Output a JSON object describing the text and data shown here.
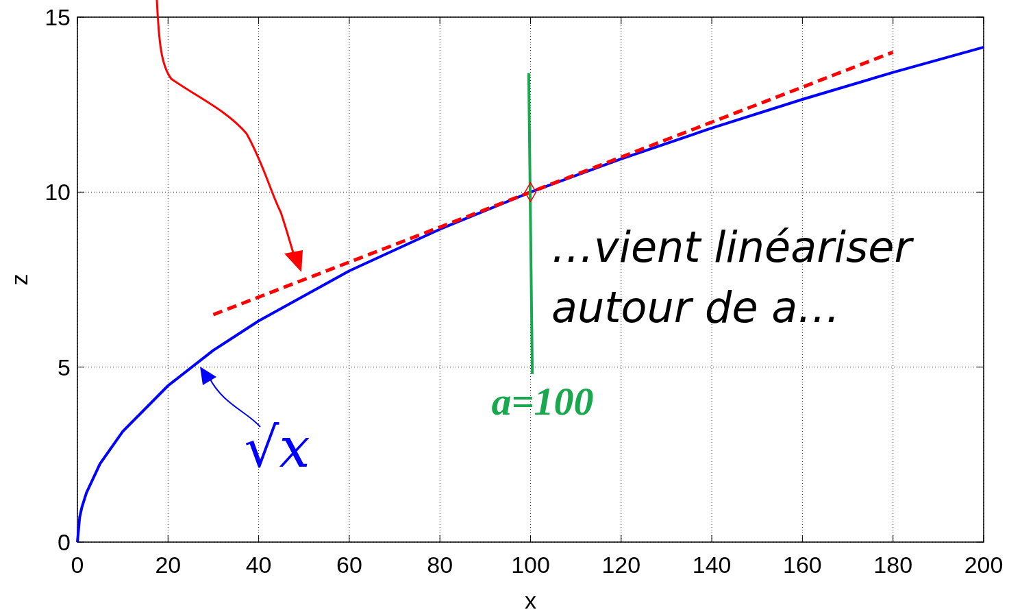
{
  "chart_data": {
    "type": "line",
    "xlabel": "x",
    "ylabel": "z",
    "xlim": [
      0,
      200
    ],
    "ylim": [
      0,
      15
    ],
    "xticks": [
      0,
      20,
      40,
      60,
      80,
      100,
      120,
      140,
      160,
      180,
      200
    ],
    "yticks": [
      0,
      5,
      10,
      15
    ],
    "grid": true,
    "series": [
      {
        "color": "#0000ff",
        "x": [
          0,
          0.5,
          1,
          2,
          5,
          10,
          20,
          30,
          40,
          60,
          80,
          100,
          120,
          140,
          160,
          180,
          200
        ],
        "values": [
          0,
          0.71,
          1,
          1.41,
          2.24,
          3.16,
          4.47,
          5.48,
          6.32,
          7.75,
          8.94,
          10,
          10.95,
          11.83,
          12.65,
          13.42,
          14.14
        ]
      },
      {
        "type": "line",
        "color": "#ff0000",
        "line_style": "dashed",
        "x": [
          30,
          180
        ],
        "values": [
          6.5,
          14
        ]
      },
      {
        "type": "line",
        "color": "#1aa84f",
        "x": [
          99.6,
          100.4
        ],
        "values": [
          13.4,
          4.8
        ]
      },
      {
        "type": "scatter",
        "color": "#ff0000",
        "marker": "diamond",
        "x": [
          100
        ],
        "values": [
          10
        ]
      }
    ],
    "annotations": [
      "…vient linéariser",
      "autour de a…",
      "a=100",
      {
        "text": "√x",
        "x": 27,
        "y": 5.1
      }
    ]
  }
}
